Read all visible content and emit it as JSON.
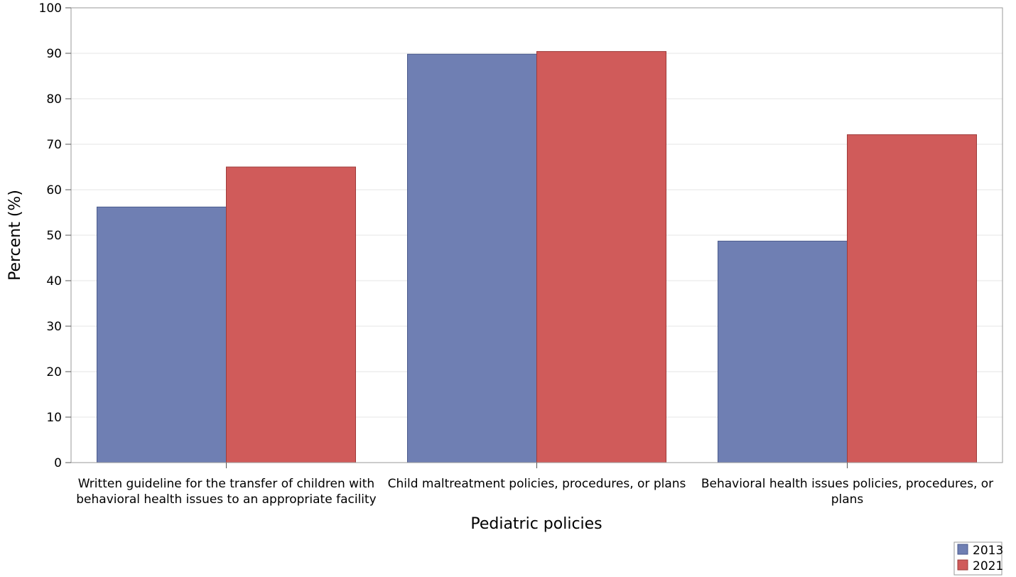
{
  "chart_data": {
    "type": "bar",
    "xlabel": "Pediatric policies",
    "ylabel": "Percent (%)",
    "ylim": [
      0,
      100
    ],
    "yticks": [
      0,
      10,
      20,
      30,
      40,
      50,
      60,
      70,
      80,
      90,
      100
    ],
    "grid": true,
    "legend_position": "bottom-right",
    "categories": [
      [
        "Written guideline for the transfer of children with",
        "behavioral health issues to an appropriate facility"
      ],
      [
        "Child maltreatment policies, procedures, or plans"
      ],
      [
        "Behavioral health issues policies, procedures, or",
        "plans"
      ]
    ],
    "series": [
      {
        "name": "2013",
        "color": "#6f7fb3",
        "values": [
          56.2,
          89.8,
          48.7
        ]
      },
      {
        "name": "2021",
        "color": "#d05b5a",
        "values": [
          65.0,
          90.4,
          72.1
        ]
      }
    ]
  }
}
